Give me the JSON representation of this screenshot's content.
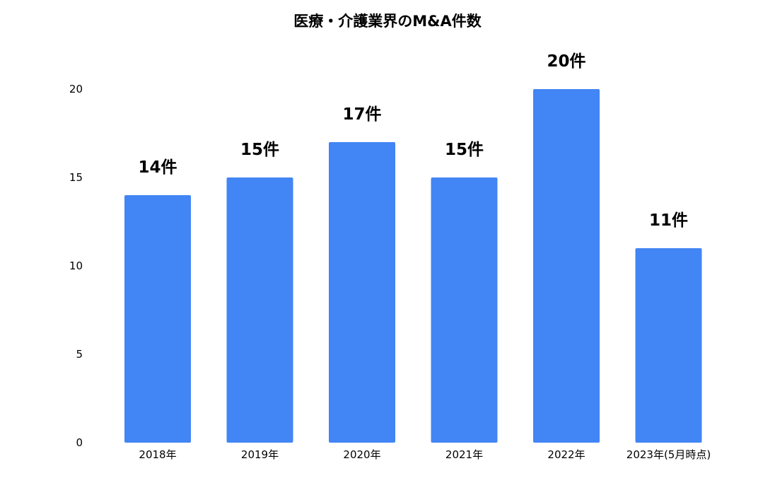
{
  "chart_data": {
    "type": "bar",
    "title": "医療・介護業界のM&A件数",
    "xlabel": "",
    "ylabel": "",
    "categories": [
      "2018年",
      "2019年",
      "2020年",
      "2021年",
      "2022年",
      "2023年(5月時点)"
    ],
    "values": [
      14,
      15,
      17,
      15,
      20,
      11
    ],
    "data_labels": [
      "14件",
      "15件",
      "17件",
      "15件",
      "20件",
      "11件"
    ],
    "ylim": [
      0,
      20
    ],
    "yticks": [
      "0",
      "5",
      "10",
      "15",
      "20"
    ],
    "grid": false,
    "legend": "none",
    "bar_color": "#4285f4"
  }
}
